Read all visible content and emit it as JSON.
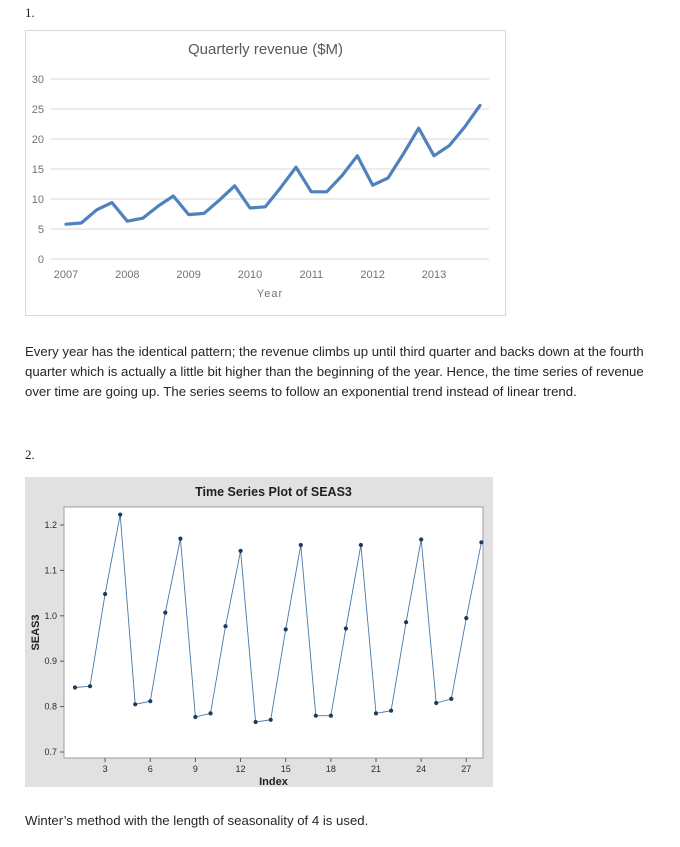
{
  "document": {
    "item1_label": "1.",
    "item2_label": "2.",
    "paragraph1": "Every year has the identical pattern; the revenue climbs up until third quarter and backs down at the fourth quarter which is actually a little bit higher than the beginning of the year. Hence, the time series of revenue over time are going up. The series seems to follow an exponential trend instead of linear trend.",
    "paragraph2": "Winter’s method with the length of seasonality of 4 is used."
  },
  "chart_data": [
    {
      "type": "line",
      "title": "Quarterly revenue ($M)",
      "xlabel": "Year",
      "ylabel": "",
      "x_unit": "quarterly, 2007 Q1 through 2013 Q4",
      "x_tick_labels": [
        "2007",
        "2008",
        "2009",
        "2010",
        "2011",
        "2012",
        "2013"
      ],
      "y_ticks": [
        0,
        5,
        10,
        15,
        20,
        25,
        30
      ],
      "ylim": [
        0,
        30
      ],
      "grid": true,
      "legend": false,
      "line_color": "#4f81bd",
      "grid_color": "#d9d9d9",
      "text_color": "#737373",
      "title_color": "#595959",
      "values": [
        5.8,
        6.0,
        8.2,
        9.4,
        6.3,
        6.8,
        8.8,
        10.5,
        7.4,
        7.6,
        9.8,
        12.2,
        8.5,
        8.7,
        11.9,
        15.3,
        11.2,
        11.2,
        13.9,
        17.2,
        12.3,
        13.5,
        17.5,
        21.8,
        17.2,
        18.9,
        22.0,
        25.6
      ]
    },
    {
      "type": "line",
      "title": "Time Series Plot of SEAS3",
      "xlabel": "Index",
      "ylabel": "SEAS3",
      "x": [
        1,
        2,
        3,
        4,
        5,
        6,
        7,
        8,
        9,
        10,
        11,
        12,
        13,
        14,
        15,
        16,
        17,
        18,
        19,
        20,
        21,
        22,
        23,
        24,
        25,
        26,
        27,
        28
      ],
      "x_ticks": [
        3,
        6,
        9,
        12,
        15,
        18,
        21,
        24,
        27
      ],
      "y_ticks": [
        0.7,
        0.8,
        0.9,
        1.0,
        1.1,
        1.2
      ],
      "ylim": [
        0.69,
        1.24
      ],
      "grid": false,
      "legend": false,
      "line_color": "#4878a8",
      "marker_color": "#1b3a5c",
      "plot_bg": "#ffffff",
      "figure_bg": "#e1e1e1",
      "values": [
        0.842,
        0.845,
        1.048,
        1.223,
        0.805,
        0.812,
        1.007,
        1.17,
        0.777,
        0.785,
        0.977,
        1.143,
        0.766,
        0.771,
        0.97,
        1.156,
        0.78,
        0.78,
        0.972,
        1.156,
        0.785,
        0.791,
        0.986,
        1.168,
        0.808,
        0.817,
        0.995,
        1.162
      ]
    }
  ]
}
